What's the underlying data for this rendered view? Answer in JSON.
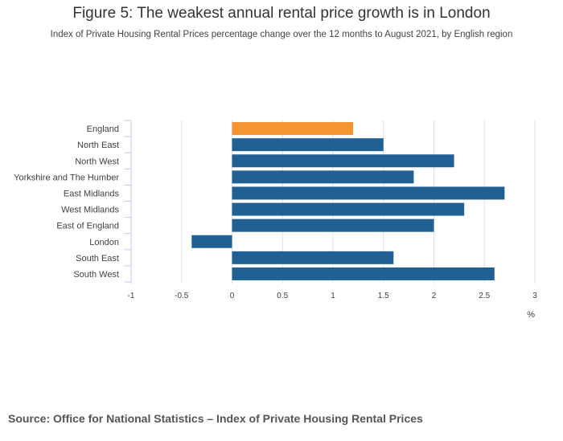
{
  "title": "Figure 5: The weakest annual rental price growth is in London",
  "subtitle": "Index of Private Housing Rental Prices percentage change over the 12 months to August 2021, by English region",
  "source": "Source: Office for National Statistics – Index of Private Housing Rental Prices",
  "colors": {
    "highlight": "#f39431",
    "default": "#206095",
    "grid": "#e0e0e0",
    "axis": "#c8c8e0"
  },
  "chart_data": {
    "type": "bar",
    "orientation": "horizontal",
    "categories": [
      "England",
      "North East",
      "North West",
      "Yorkshire and The Humber",
      "East Midlands",
      "West Midlands",
      "East of England",
      "London",
      "South East",
      "South West"
    ],
    "values": [
      1.2,
      1.5,
      2.2,
      1.8,
      2.7,
      2.3,
      2.0,
      -0.4,
      1.6,
      2.6
    ],
    "highlight_category": "England",
    "xlim": [
      -1,
      3
    ],
    "xticks": [
      -1,
      -0.5,
      0,
      0.5,
      1,
      1.5,
      2,
      2.5,
      3
    ],
    "xtick_labels": [
      "-1",
      "-0.5",
      "0",
      "0.5",
      "1",
      "1.5",
      "2",
      "2.5",
      "3"
    ],
    "xlabel": "%",
    "ylabel": "",
    "grid": true
  }
}
